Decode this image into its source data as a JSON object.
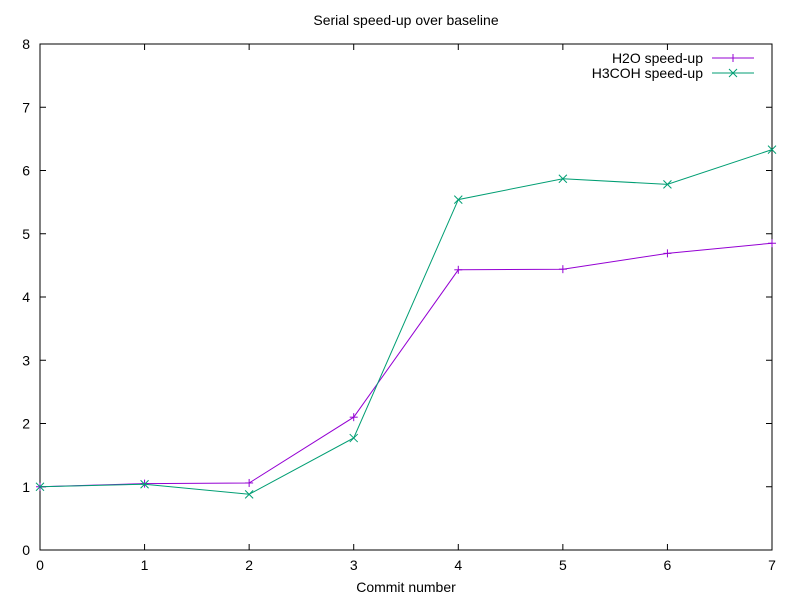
{
  "chart_data": {
    "type": "line",
    "title": "Serial speed-up over baseline",
    "xlabel": "Commit number",
    "ylabel": "",
    "xlim": [
      0,
      7
    ],
    "ylim": [
      0,
      8
    ],
    "x_ticks": [
      0,
      1,
      2,
      3,
      4,
      5,
      6,
      7
    ],
    "y_ticks": [
      0,
      1,
      2,
      3,
      4,
      5,
      6,
      7,
      8
    ],
    "grid": false,
    "legend_position": "top-right",
    "x": [
      0,
      1,
      2,
      3,
      4,
      5,
      6,
      7
    ],
    "series": [
      {
        "name": "H2O speed-up",
        "color": "#9400d3",
        "marker": "plus",
        "values": [
          1.0,
          1.05,
          1.06,
          2.1,
          4.43,
          4.44,
          4.69,
          4.85
        ]
      },
      {
        "name": "H3COH speed-up",
        "color": "#009e73",
        "marker": "cross",
        "values": [
          1.0,
          1.04,
          0.88,
          1.77,
          5.54,
          5.87,
          5.78,
          6.33
        ]
      }
    ]
  }
}
